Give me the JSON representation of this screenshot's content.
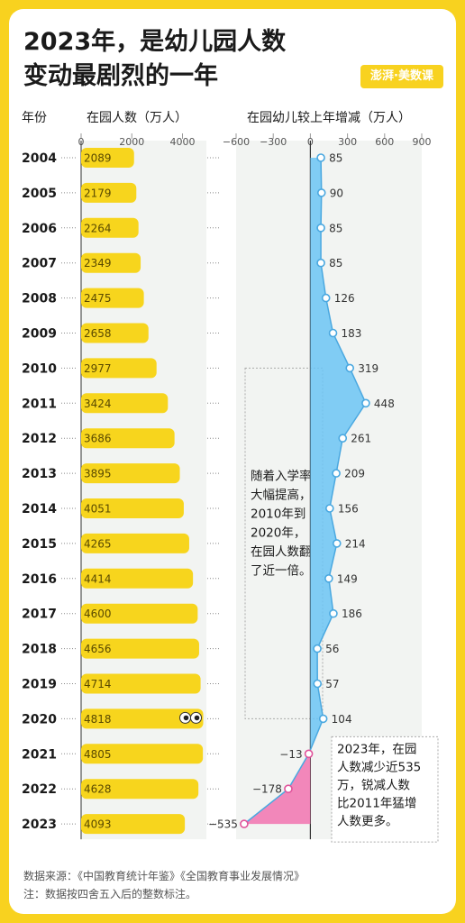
{
  "title_line1": "2023年，是幼儿园人数",
  "title_line2": "变动最剧烈的一年",
  "logo_text": "澎湃·美数课",
  "header_year": "年份",
  "header_left": "在园人数（万人）",
  "header_right": "在园幼儿较上年增减（万人）",
  "annotation_1": [
    "随着入学率",
    "大幅提高，",
    "2010年到",
    "2020年，",
    "在园人数翻",
    "了近一倍。"
  ],
  "annotation_2": [
    "2023年，在园",
    "人数减少近535",
    "万，锐减人数",
    "比2011年猛增",
    "人数更多。"
  ],
  "source_line": "数据来源：《中国教育统计年鉴》《全国教育事业发展情况》",
  "note_line": "注：数据按四舍五入后的整数标注。",
  "colors": {
    "accent_yellow": "#f8d21f",
    "bar_yellow": "#f7d51d",
    "increase_blue": "#6cc4f5",
    "decrease_pink": "#f27bb4",
    "text": "#1a1a1a"
  },
  "chart_data": [
    {
      "type": "bar",
      "orientation": "horizontal",
      "title": "在园人数（万人）",
      "categories": [
        "2004",
        "2005",
        "2006",
        "2007",
        "2008",
        "2009",
        "2010",
        "2011",
        "2012",
        "2013",
        "2014",
        "2015",
        "2016",
        "2017",
        "2018",
        "2019",
        "2020",
        "2021",
        "2022",
        "2023"
      ],
      "values": [
        2089,
        2179,
        2264,
        2349,
        2475,
        2658,
        2977,
        3424,
        3686,
        3895,
        4051,
        4265,
        4414,
        4600,
        4656,
        4714,
        4818,
        4805,
        4628,
        4093
      ],
      "ticks": [
        "0",
        "2000",
        "4000"
      ],
      "xlim": [
        0,
        4800
      ]
    },
    {
      "type": "area",
      "orientation": "vertical",
      "title": "在园幼儿较上年增减（万人）",
      "categories": [
        "2004",
        "2005",
        "2006",
        "2007",
        "2008",
        "2009",
        "2010",
        "2011",
        "2012",
        "2013",
        "2014",
        "2015",
        "2016",
        "2017",
        "2018",
        "2019",
        "2020",
        "2021",
        "2022",
        "2023"
      ],
      "values": [
        85,
        90,
        85,
        85,
        126,
        183,
        319,
        448,
        261,
        209,
        156,
        214,
        149,
        186,
        56,
        57,
        104,
        -13,
        -178,
        -535
      ],
      "labels": [
        "85",
        "90",
        "85",
        "85",
        "126",
        "183",
        "319",
        "448",
        "261",
        "209",
        "156",
        "214",
        "149",
        "186",
        "56",
        "57",
        "104",
        "−13",
        "−178",
        "−535"
      ],
      "ticks": [
        "−600",
        "−300",
        "0",
        "300",
        "600",
        "900"
      ],
      "tick_values": [
        -600,
        -300,
        0,
        300,
        600,
        900
      ],
      "xlim": [
        -600,
        900
      ]
    }
  ]
}
